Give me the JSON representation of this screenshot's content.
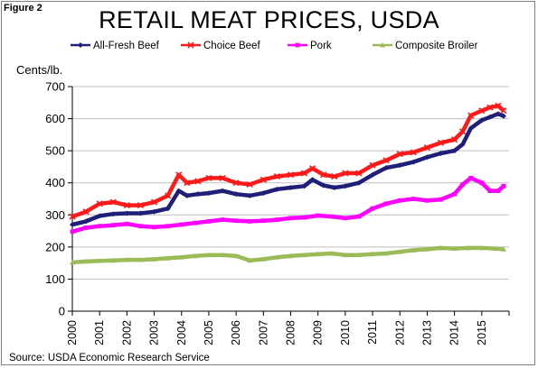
{
  "figure_label": "Figure 2",
  "source_note": "Source:  USDA Economic Research Service",
  "chart_data": {
    "type": "line",
    "title": "RETAIL MEAT PRICES, USDA",
    "ylabel": "Cents/lb.",
    "xlabel": "",
    "ylim": [
      0,
      700
    ],
    "yticks": [
      0,
      100,
      200,
      300,
      400,
      500,
      600,
      700
    ],
    "xlim": [
      2000,
      2016
    ],
    "xticks": [
      "2000",
      "2001",
      "2002",
      "2003",
      "2004",
      "2005",
      "2006",
      "2007",
      "2008",
      "2009",
      "2010",
      "2011",
      "2012",
      "2013",
      "2014",
      "2015"
    ],
    "grid": "horizontal",
    "legend": "top",
    "series": [
      {
        "name": "All-Fresh Beef",
        "color": "#1f1f7a",
        "marker": "diamond",
        "x": [
          2000,
          2000.5,
          2001,
          2001.5,
          2002,
          2002.5,
          2003,
          2003.5,
          2003.9,
          2004.2,
          2004.6,
          2005,
          2005.5,
          2006,
          2006.5,
          2007,
          2007.5,
          2008,
          2008.5,
          2008.8,
          2009.2,
          2009.6,
          2010,
          2010.5,
          2011,
          2011.5,
          2012,
          2012.5,
          2013,
          2013.5,
          2014,
          2014.3,
          2014.6,
          2015,
          2015.3,
          2015.6,
          2015.8
        ],
        "y": [
          270,
          280,
          297,
          303,
          305,
          305,
          310,
          320,
          375,
          360,
          365,
          368,
          375,
          365,
          360,
          368,
          380,
          385,
          390,
          410,
          392,
          385,
          390,
          400,
          425,
          447,
          455,
          465,
          480,
          492,
          500,
          520,
          570,
          595,
          605,
          615,
          608
        ]
      },
      {
        "name": "Choice Beef",
        "color": "#ff1a1a",
        "marker": "x",
        "x": [
          2000,
          2000.5,
          2001,
          2001.5,
          2002,
          2002.5,
          2003,
          2003.5,
          2003.9,
          2004.2,
          2004.6,
          2005,
          2005.5,
          2006,
          2006.5,
          2007,
          2007.5,
          2008,
          2008.5,
          2008.8,
          2009.2,
          2009.6,
          2010,
          2010.5,
          2011,
          2011.5,
          2012,
          2012.5,
          2013,
          2013.5,
          2014,
          2014.3,
          2014.6,
          2015,
          2015.3,
          2015.6,
          2015.8
        ],
        "y": [
          295,
          310,
          335,
          340,
          330,
          330,
          340,
          360,
          425,
          400,
          405,
          415,
          415,
          400,
          395,
          410,
          420,
          425,
          430,
          445,
          425,
          420,
          430,
          430,
          455,
          470,
          490,
          495,
          510,
          525,
          535,
          560,
          610,
          625,
          635,
          640,
          625
        ]
      },
      {
        "name": "Pork",
        "color": "#ff00ff",
        "marker": "square",
        "x": [
          2000,
          2000.5,
          2001,
          2001.5,
          2002,
          2002.5,
          2003,
          2003.5,
          2004,
          2004.5,
          2005,
          2005.5,
          2006,
          2006.5,
          2007,
          2007.5,
          2008,
          2008.5,
          2009,
          2009.5,
          2010,
          2010.5,
          2011,
          2011.5,
          2012,
          2012.5,
          2013,
          2013.5,
          2014,
          2014.3,
          2014.6,
          2015,
          2015.3,
          2015.6,
          2015.8
        ],
        "y": [
          248,
          260,
          265,
          268,
          272,
          265,
          262,
          265,
          270,
          275,
          280,
          285,
          282,
          280,
          282,
          285,
          290,
          292,
          298,
          295,
          290,
          295,
          320,
          335,
          345,
          350,
          345,
          348,
          365,
          395,
          415,
          400,
          375,
          375,
          390
        ]
      },
      {
        "name": "Composite Broiler",
        "color": "#9bbb59",
        "marker": "triangle",
        "x": [
          2000,
          2000.5,
          2001,
          2001.5,
          2002,
          2002.5,
          2003,
          2003.5,
          2004,
          2004.5,
          2005,
          2005.5,
          2006,
          2006.5,
          2007,
          2007.5,
          2008,
          2008.5,
          2009,
          2009.5,
          2010,
          2010.5,
          2011,
          2011.5,
          2012,
          2012.5,
          2013,
          2013.5,
          2014,
          2014.5,
          2015,
          2015.5,
          2015.8
        ],
        "y": [
          152,
          155,
          157,
          158,
          160,
          160,
          162,
          165,
          168,
          172,
          175,
          175,
          172,
          158,
          162,
          168,
          172,
          175,
          178,
          180,
          175,
          175,
          178,
          180,
          185,
          190,
          193,
          197,
          195,
          197,
          197,
          195,
          193
        ]
      }
    ]
  }
}
